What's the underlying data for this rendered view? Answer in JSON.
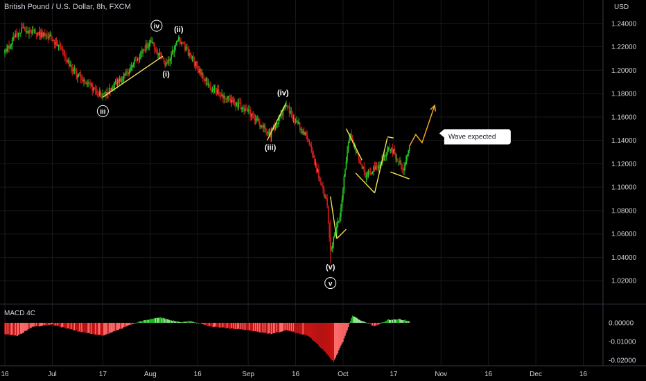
{
  "chart_data": {
    "type": "candlestick",
    "title": "British Pound / U.S. Dollar, 8h, FXCM",
    "currency": "USD",
    "price_axis": {
      "range": [
        1.0,
        1.26
      ],
      "ticks": [
        "1.24000",
        "1.22000",
        "1.20000",
        "1.18000",
        "1.16000",
        "1.14000",
        "1.12000",
        "1.10000",
        "1.08000",
        "1.06000",
        "1.04000",
        "1.02000"
      ]
    },
    "time_axis": {
      "ticks": [
        "16",
        "Jul",
        "17",
        "Aug",
        "16",
        "Sep",
        "16",
        "Oct",
        "17",
        "Nov",
        "16",
        "Dec",
        "16"
      ]
    },
    "price_waypoints": [
      [
        "16 Jun",
        1.215
      ],
      [
        "21 Jun",
        1.235
      ],
      [
        "1 Jul",
        1.228
      ],
      [
        "9 Jul",
        1.195
      ],
      [
        "17 Jul",
        1.178
      ],
      [
        "24 Jul",
        1.195
      ],
      [
        "1 Aug",
        1.225
      ],
      [
        "6 Aug",
        1.205
      ],
      [
        "10 Aug",
        1.227
      ],
      [
        "16 Aug",
        1.202
      ],
      [
        "20 Aug",
        1.185
      ],
      [
        "1 Sep",
        1.165
      ],
      [
        "8 Sep",
        1.145
      ],
      [
        "13 Sep",
        1.17
      ],
      [
        "20 Sep",
        1.14
      ],
      [
        "26 Sep",
        1.085
      ],
      [
        "27 Sep",
        1.045
      ],
      [
        "30 Sep",
        1.075
      ],
      [
        "3 Oct",
        1.145
      ],
      [
        "8 Oct",
        1.11
      ],
      [
        "13 Oct",
        1.12
      ],
      [
        "16 Oct",
        1.135
      ],
      [
        "20 Oct",
        1.115
      ],
      [
        "22 Oct",
        1.135
      ]
    ],
    "projection": [
      [
        "22 Oct",
        1.135
      ],
      [
        "24 Oct",
        1.145
      ],
      [
        "26 Oct",
        1.138
      ],
      [
        "30 Oct",
        1.17
      ]
    ],
    "trendlines": [
      [
        [
          "17 Jul",
          1.177
        ],
        [
          "5 Aug",
          1.212
        ]
      ],
      [
        [
          "7 Sep",
          1.14
        ],
        [
          "13 Sep",
          1.172
        ]
      ],
      [
        [
          "27 Sep",
          1.092
        ],
        [
          "29 Sep",
          1.056
        ]
      ],
      [
        [
          "29 Sep",
          1.056
        ],
        [
          "2 Oct",
          1.064
        ]
      ],
      [
        [
          "2 Oct",
          1.15
        ],
        [
          "7 Oct",
          1.123
        ]
      ],
      [
        [
          "5 Oct",
          1.112
        ],
        [
          "11 Oct",
          1.095
        ]
      ],
      [
        [
          "11 Oct",
          1.095
        ],
        [
          "15 Oct",
          1.142
        ]
      ],
      [
        [
          "15 Oct",
          1.143
        ],
        [
          "17 Oct",
          1.142
        ]
      ],
      [
        [
          "16 Oct",
          1.113
        ],
        [
          "22 Oct",
          1.107
        ]
      ]
    ],
    "wave_labels": [
      {
        "text": "iii",
        "date": "17 Jul",
        "price": 1.165,
        "circled": true
      },
      {
        "text": "iv",
        "date": "3 Aug",
        "price": 1.238,
        "circled": true
      },
      {
        "text": "(i)",
        "date": "6 Aug",
        "price": 1.197
      },
      {
        "text": "(ii)",
        "date": "10 Aug",
        "price": 1.235
      },
      {
        "text": "(iii)",
        "date": "8 Sep",
        "price": 1.134
      },
      {
        "text": "(iv)",
        "date": "12 Sep",
        "price": 1.181
      },
      {
        "text": "(v)",
        "date": "27 Sep",
        "price": 1.032
      },
      {
        "text": "v",
        "date": "27 Sep",
        "price": 1.018,
        "circled": true
      }
    ],
    "annotation": {
      "text": "Wave expected",
      "date": "2 Nov",
      "price": 1.146
    },
    "macd": {
      "name": "MACD 4C",
      "range": [
        -0.023,
        0.01
      ],
      "ticks": [
        "0.00000",
        "-0.01000",
        "-0.02000"
      ],
      "waypoints": [
        [
          "16 Jun",
          -0.006
        ],
        [
          "20 Jun",
          -0.007
        ],
        [
          "25 Jun",
          -0.002
        ],
        [
          "1 Jul",
          -0.001
        ],
        [
          "10 Jul",
          -0.005
        ],
        [
          "17 Jul",
          -0.007
        ],
        [
          "23 Jul",
          -0.003
        ],
        [
          "28 Jul",
          0.0005
        ],
        [
          "4 Aug",
          0.003
        ],
        [
          "10 Aug",
          0.0004
        ],
        [
          "14 Aug",
          0.0008
        ],
        [
          "20 Aug",
          -0.002
        ],
        [
          "1 Sep",
          -0.004
        ],
        [
          "8 Sep",
          -0.006
        ],
        [
          "13 Sep",
          -0.004
        ],
        [
          "20 Sep",
          -0.007
        ],
        [
          "25 Sep",
          -0.015
        ],
        [
          "28 Sep",
          -0.021
        ],
        [
          "1 Oct",
          -0.01
        ],
        [
          "4 Oct",
          0.004
        ],
        [
          "7 Oct",
          0.001
        ],
        [
          "11 Oct",
          -0.002
        ],
        [
          "15 Oct",
          0.0015
        ],
        [
          "19 Oct",
          0.002
        ],
        [
          "22 Oct",
          0.001
        ]
      ]
    },
    "colors": {
      "background": "#000000",
      "up": "#26c826",
      "down": "#d81b1b",
      "trendline": "#f5e45a",
      "projection": "#f5a623",
      "grid": "#1a1a1a",
      "text": "#d1d4dc",
      "macd_up_strong": "#1fb81f",
      "macd_up_weak": "#9be39b",
      "macd_down_strong": "#c41414",
      "macd_down_weak": "#ff6b6b"
    }
  }
}
